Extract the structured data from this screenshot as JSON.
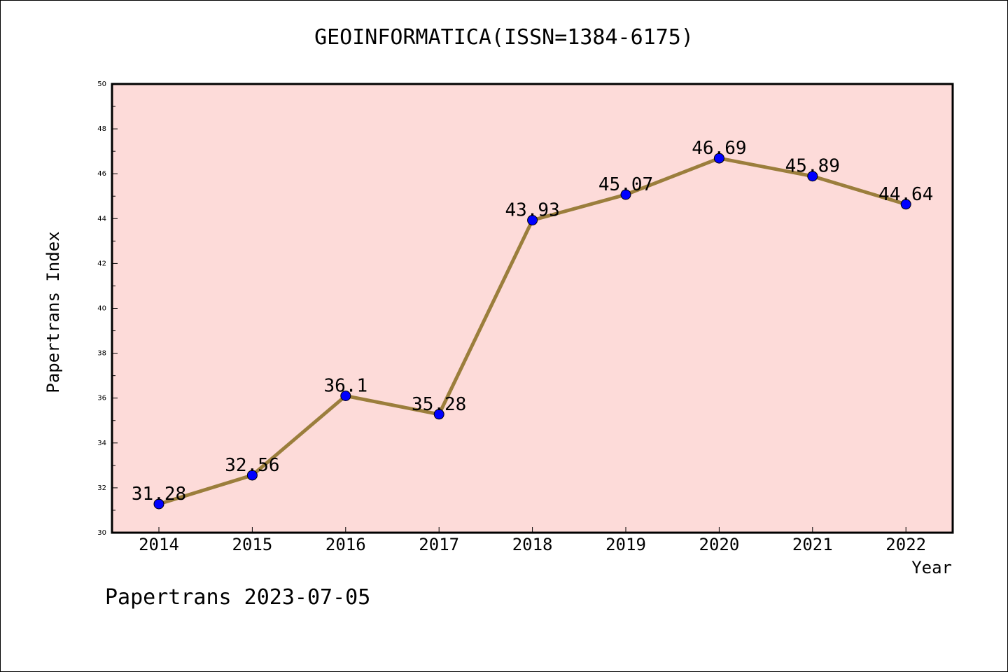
{
  "chart_data": {
    "type": "line",
    "title": "GEOINFORMATICA(ISSN=1384-6175)",
    "xlabel": "Year",
    "ylabel": "Papertrans Index",
    "categories": [
      "2014",
      "2015",
      "2016",
      "2017",
      "2018",
      "2019",
      "2020",
      "2021",
      "2022"
    ],
    "values": [
      31.28,
      32.56,
      36.1,
      35.28,
      43.93,
      45.07,
      46.69,
      45.89,
      44.64
    ],
    "data_labels": [
      "31.28",
      "32.56",
      "36.1",
      "35.28",
      "43.93",
      "45.07",
      "46.69",
      "45.89",
      "44.64"
    ],
    "ylim": [
      30,
      50
    ],
    "yticks": [
      30,
      32,
      34,
      36,
      38,
      40,
      42,
      44,
      46,
      48,
      50
    ],
    "grid": false,
    "legend": "none",
    "colors": {
      "plot_background": "#fddbd9",
      "line": "#9b7e3c",
      "marker": "#0000ff",
      "axis": "#000000"
    }
  },
  "footer": {
    "stamp": "Papertrans 2023-07-05"
  }
}
